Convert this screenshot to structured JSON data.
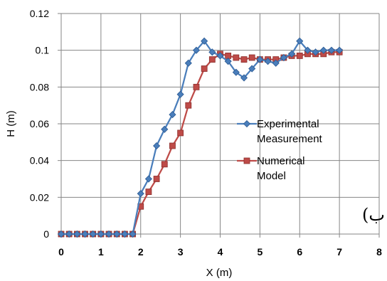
{
  "chart_data": {
    "type": "line",
    "xlabel": "X (m)",
    "ylabel": "H (m)",
    "xlim": [
      0,
      8
    ],
    "ylim": [
      0,
      0.12
    ],
    "x_ticks": [
      "0",
      "1",
      "2",
      "3",
      "4",
      "5",
      "6",
      "7",
      "8"
    ],
    "y_ticks": [
      "0",
      "0.02",
      "0.04",
      "0.06",
      "0.08",
      "0.1",
      "0.12"
    ],
    "grid": true,
    "legend_position": "right",
    "panel_label": "(ب",
    "series": [
      {
        "name_lines": [
          "Experimental",
          "Measurement"
        ],
        "color": "#4a7ebb",
        "marker": "diamond",
        "points": [
          [
            0,
            0
          ],
          [
            0.2,
            0
          ],
          [
            0.4,
            0
          ],
          [
            0.6,
            0
          ],
          [
            0.8,
            0
          ],
          [
            1.0,
            0
          ],
          [
            1.2,
            0
          ],
          [
            1.4,
            0
          ],
          [
            1.6,
            0
          ],
          [
            1.8,
            0
          ],
          [
            2.0,
            0.022
          ],
          [
            2.2,
            0.03
          ],
          [
            2.4,
            0.048
          ],
          [
            2.6,
            0.057
          ],
          [
            2.8,
            0.065
          ],
          [
            3.0,
            0.076
          ],
          [
            3.2,
            0.093
          ],
          [
            3.4,
            0.1
          ],
          [
            3.6,
            0.105
          ],
          [
            3.8,
            0.099
          ],
          [
            4.0,
            0.097
          ],
          [
            4.2,
            0.094
          ],
          [
            4.4,
            0.088
          ],
          [
            4.6,
            0.085
          ],
          [
            4.8,
            0.09
          ],
          [
            5.0,
            0.095
          ],
          [
            5.2,
            0.094
          ],
          [
            5.4,
            0.093
          ],
          [
            5.6,
            0.096
          ],
          [
            5.8,
            0.098
          ],
          [
            6.0,
            0.105
          ],
          [
            6.2,
            0.1
          ],
          [
            6.4,
            0.099
          ],
          [
            6.6,
            0.1
          ],
          [
            6.8,
            0.1
          ],
          [
            7.0,
            0.1
          ]
        ]
      },
      {
        "name_lines": [
          "Numerical",
          "Model"
        ],
        "color": "#be4b48",
        "marker": "square",
        "points": [
          [
            0,
            0
          ],
          [
            0.2,
            0
          ],
          [
            0.4,
            0
          ],
          [
            0.6,
            0
          ],
          [
            0.8,
            0
          ],
          [
            1.0,
            0
          ],
          [
            1.2,
            0
          ],
          [
            1.4,
            0
          ],
          [
            1.6,
            0
          ],
          [
            1.8,
            0
          ],
          [
            2.0,
            0.015
          ],
          [
            2.2,
            0.023
          ],
          [
            2.4,
            0.03
          ],
          [
            2.6,
            0.038
          ],
          [
            2.8,
            0.048
          ],
          [
            3.0,
            0.055
          ],
          [
            3.2,
            0.07
          ],
          [
            3.4,
            0.08
          ],
          [
            3.6,
            0.09
          ],
          [
            3.8,
            0.095
          ],
          [
            4.0,
            0.098
          ],
          [
            4.2,
            0.097
          ],
          [
            4.4,
            0.096
          ],
          [
            4.6,
            0.095
          ],
          [
            4.8,
            0.096
          ],
          [
            5.0,
            0.095
          ],
          [
            5.2,
            0.095
          ],
          [
            5.4,
            0.095
          ],
          [
            5.6,
            0.096
          ],
          [
            5.8,
            0.097
          ],
          [
            6.0,
            0.097
          ],
          [
            6.2,
            0.098
          ],
          [
            6.4,
            0.098
          ],
          [
            6.6,
            0.098
          ],
          [
            6.8,
            0.099
          ],
          [
            7.0,
            0.099
          ]
        ]
      }
    ]
  }
}
